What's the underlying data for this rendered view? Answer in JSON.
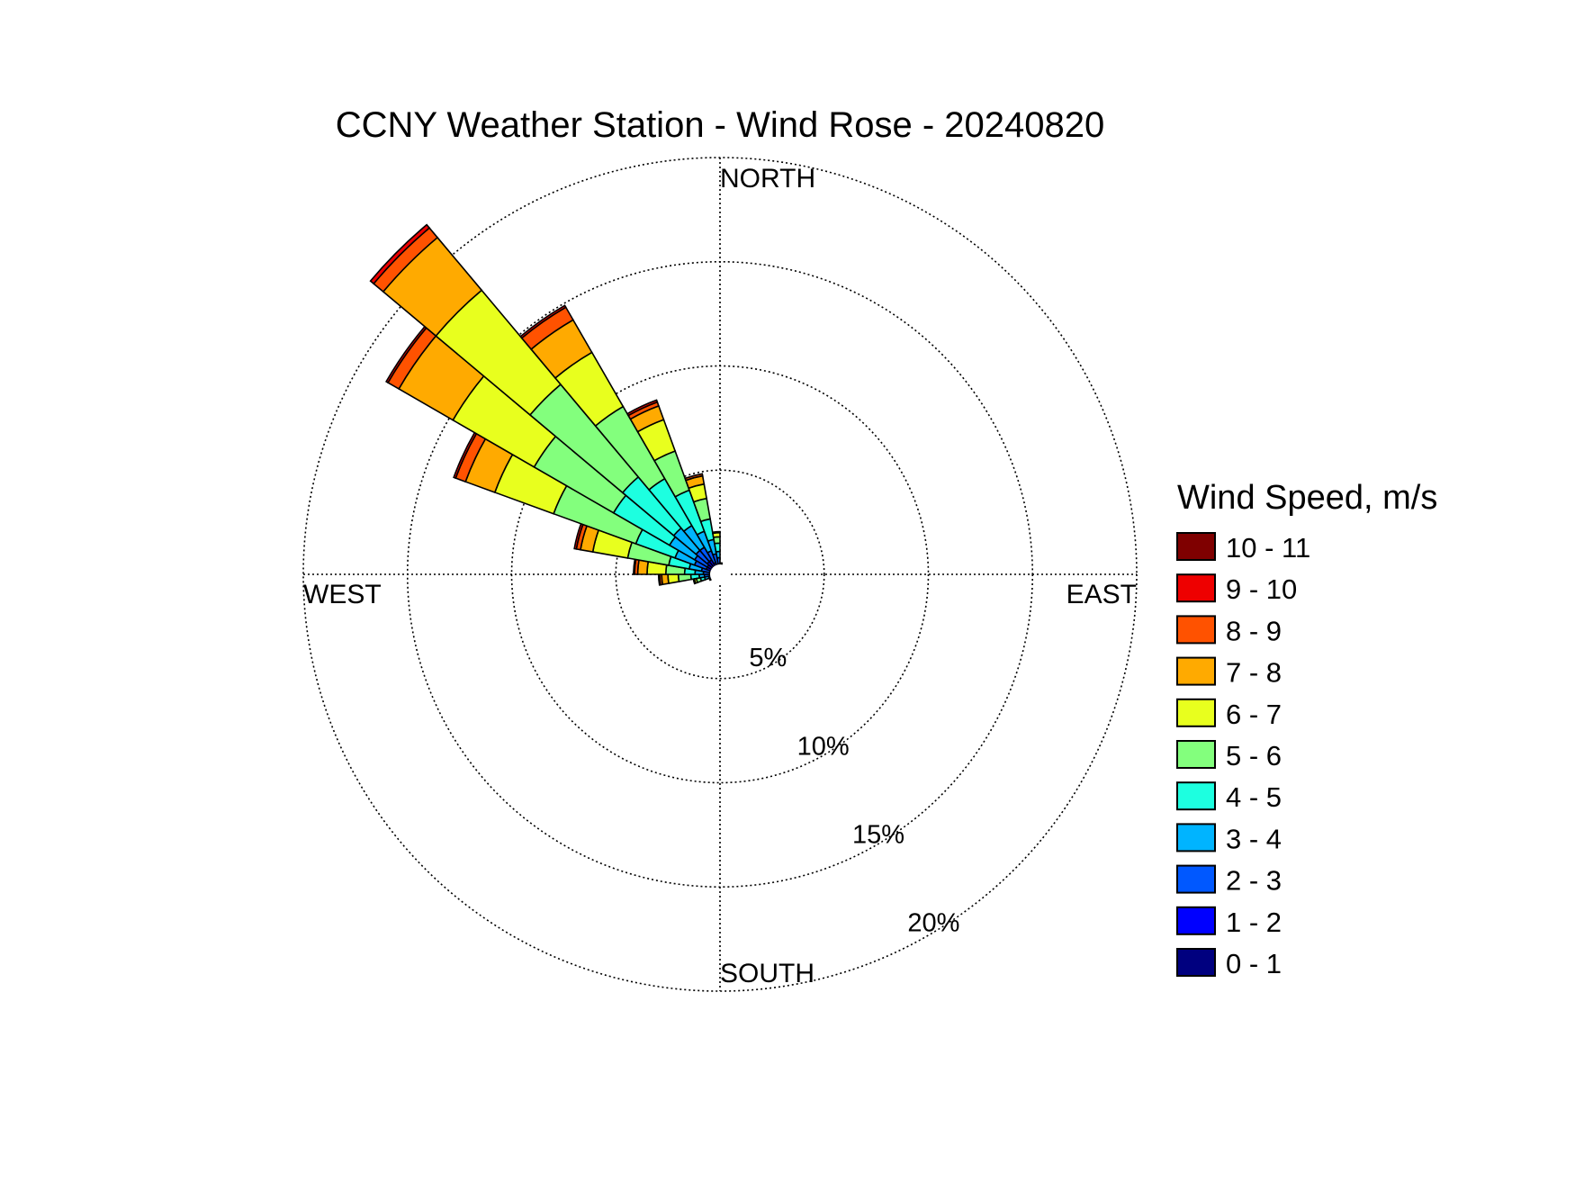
{
  "chart_data": {
    "type": "wind-rose",
    "title": "CCNY Weather Station - Wind Rose - 20240820",
    "directions": {
      "north": "NORTH",
      "south": "SOUTH",
      "east": "EAST",
      "west": "WEST"
    },
    "radial_axis": {
      "unit": "%",
      "max": 20,
      "rings": [
        5,
        10,
        15,
        20
      ],
      "ring_labels": [
        "5%",
        "10%",
        "15%",
        "20%"
      ]
    },
    "legend": {
      "title": "Wind Speed, m/s",
      "placement": "right",
      "entries": [
        {
          "label": "10 - 11",
          "color": "#7f0000"
        },
        {
          "label": "9 - 10",
          "color": "#ee0000"
        },
        {
          "label": "8 - 9",
          "color": "#ff5200"
        },
        {
          "label": "7 - 8",
          "color": "#ffaa00"
        },
        {
          "label": "6 - 7",
          "color": "#e8ff1e"
        },
        {
          "label": "5 - 6",
          "color": "#83ff7d"
        },
        {
          "label": "4 - 5",
          "color": "#1dffe0"
        },
        {
          "label": "3 - 4",
          "color": "#00b4ff"
        },
        {
          "label": "2 - 3",
          "color": "#0058ff"
        },
        {
          "label": "1 - 2",
          "color": "#0000ff"
        },
        {
          "label": "0 - 1",
          "color": "#00007f"
        }
      ]
    },
    "bins": [
      "0 - 1",
      "1 - 2",
      "2 - 3",
      "3 - 4",
      "4 - 5",
      "5 - 6",
      "6 - 7",
      "7 - 8",
      "8 - 9",
      "9 - 10",
      "10 - 11"
    ],
    "sector_width_deg": 10,
    "sectors": [
      {
        "direction_deg": 265,
        "values": [
          0.2,
          0.3,
          0.25,
          0.25,
          0.4,
          0.6,
          0.5,
          0.3,
          0.1,
          0.05,
          0
        ]
      },
      {
        "direction_deg": 275,
        "values": [
          0.2,
          0.3,
          0.3,
          0.4,
          0.5,
          0.9,
          0.9,
          0.45,
          0.15,
          0.05,
          0
        ]
      },
      {
        "direction_deg": 285,
        "values": [
          0.2,
          0.3,
          0.4,
          0.6,
          1.0,
          2.0,
          1.7,
          0.6,
          0.2,
          0.1,
          0
        ]
      },
      {
        "direction_deg": 295,
        "values": [
          0.3,
          0.4,
          0.6,
          1.0,
          2.0,
          4.2,
          3.0,
          1.5,
          0.5,
          0.1,
          0
        ]
      },
      {
        "direction_deg": 305,
        "values": [
          0.3,
          0.4,
          0.7,
          1.4,
          3.1,
          4.4,
          4.5,
          3.0,
          0.6,
          0.1,
          0
        ]
      },
      {
        "direction_deg": 315,
        "values": [
          0.3,
          0.5,
          0.7,
          1.4,
          3.2,
          5.8,
          5.9,
          3.3,
          0.6,
          0.2,
          0
        ]
      },
      {
        "direction_deg": 325,
        "values": [
          0.3,
          0.5,
          0.7,
          1.2,
          2.6,
          4.0,
          3.0,
          1.8,
          0.7,
          0.1,
          0
        ]
      },
      {
        "direction_deg": 335,
        "values": [
          0.2,
          0.4,
          0.6,
          1.0,
          2.1,
          2.0,
          1.6,
          0.7,
          0.2,
          0.1,
          0
        ]
      },
      {
        "direction_deg": 345,
        "values": [
          0.2,
          0.3,
          0.5,
          0.7,
          1.0,
          1.0,
          0.7,
          0.4,
          0.1,
          0,
          0
        ]
      },
      {
        "direction_deg": 355,
        "values": [
          0.2,
          0.3,
          0.3,
          0.3,
          0.4,
          0.3,
          0.2,
          0.05,
          0,
          0,
          0
        ]
      },
      {
        "direction_deg": 5,
        "values": [
          0.15,
          0.2,
          0.15,
          0.05,
          0,
          0,
          0,
          0,
          0,
          0,
          0
        ]
      },
      {
        "direction_deg": 15,
        "values": [
          0.15,
          0.15,
          0.1,
          0,
          0,
          0,
          0,
          0,
          0,
          0,
          0
        ]
      },
      {
        "direction_deg": 25,
        "values": [
          0.1,
          0.15,
          0.05,
          0,
          0,
          0,
          0,
          0,
          0,
          0,
          0
        ]
      },
      {
        "direction_deg": 35,
        "values": [
          0.1,
          0.1,
          0.05,
          0,
          0,
          0,
          0,
          0,
          0,
          0,
          0
        ]
      },
      {
        "direction_deg": 45,
        "values": [
          0.1,
          0.1,
          0,
          0,
          0,
          0,
          0,
          0,
          0,
          0,
          0
        ]
      },
      {
        "direction_deg": 55,
        "values": [
          0.1,
          0.1,
          0,
          0,
          0,
          0,
          0,
          0,
          0,
          0,
          0
        ]
      },
      {
        "direction_deg": 65,
        "values": [
          0.1,
          0.1,
          0,
          0,
          0,
          0,
          0,
          0,
          0,
          0,
          0
        ]
      },
      {
        "direction_deg": 75,
        "values": [
          0.1,
          0.05,
          0,
          0,
          0,
          0,
          0,
          0,
          0,
          0,
          0
        ]
      },
      {
        "direction_deg": 85,
        "values": [
          0.1,
          0.05,
          0,
          0,
          0,
          0,
          0,
          0,
          0,
          0,
          0
        ]
      },
      {
        "direction_deg": 95,
        "values": [
          0.1,
          0.1,
          0,
          0,
          0,
          0,
          0,
          0,
          0,
          0,
          0
        ]
      },
      {
        "direction_deg": 105,
        "values": [
          0.1,
          0.1,
          0.05,
          0,
          0,
          0,
          0,
          0,
          0,
          0,
          0
        ]
      },
      {
        "direction_deg": 115,
        "values": [
          0.1,
          0.1,
          0.05,
          0,
          0,
          0,
          0,
          0,
          0,
          0,
          0
        ]
      },
      {
        "direction_deg": 125,
        "values": [
          0.05,
          0.05,
          0,
          0,
          0,
          0,
          0,
          0,
          0,
          0,
          0
        ]
      },
      {
        "direction_deg": 135,
        "values": [
          0.05,
          0,
          0,
          0,
          0,
          0,
          0,
          0,
          0,
          0,
          0
        ]
      },
      {
        "direction_deg": 145,
        "values": [
          0.05,
          0,
          0,
          0,
          0,
          0,
          0,
          0,
          0,
          0,
          0
        ]
      },
      {
        "direction_deg": 155,
        "values": [
          0.05,
          0,
          0,
          0,
          0,
          0,
          0,
          0,
          0,
          0,
          0
        ]
      },
      {
        "direction_deg": 165,
        "values": [
          0.05,
          0,
          0,
          0,
          0,
          0,
          0,
          0,
          0,
          0,
          0
        ]
      },
      {
        "direction_deg": 175,
        "values": [
          0.05,
          0,
          0,
          0,
          0,
          0,
          0,
          0,
          0,
          0,
          0
        ]
      },
      {
        "direction_deg": 185,
        "values": [
          0.05,
          0,
          0,
          0,
          0,
          0,
          0,
          0,
          0,
          0,
          0
        ]
      },
      {
        "direction_deg": 195,
        "values": [
          0.05,
          0,
          0,
          0,
          0,
          0,
          0,
          0,
          0,
          0,
          0
        ]
      },
      {
        "direction_deg": 205,
        "values": [
          0.05,
          0.05,
          0,
          0,
          0,
          0,
          0,
          0,
          0,
          0,
          0
        ]
      },
      {
        "direction_deg": 215,
        "values": [
          0.1,
          0.05,
          0,
          0,
          0,
          0,
          0,
          0,
          0,
          0,
          0
        ]
      },
      {
        "direction_deg": 225,
        "values": [
          0.1,
          0.1,
          0.05,
          0,
          0,
          0,
          0,
          0,
          0,
          0,
          0
        ]
      },
      {
        "direction_deg": 235,
        "values": [
          0.1,
          0.1,
          0.1,
          0.05,
          0,
          0,
          0,
          0,
          0,
          0,
          0
        ]
      },
      {
        "direction_deg": 245,
        "values": [
          0.15,
          0.15,
          0.1,
          0.1,
          0.05,
          0,
          0,
          0,
          0,
          0,
          0
        ]
      },
      {
        "direction_deg": 255,
        "values": [
          0.15,
          0.2,
          0.2,
          0.2,
          0.2,
          0.2,
          0.1,
          0.05,
          0,
          0,
          0
        ]
      }
    ],
    "grid": true
  }
}
